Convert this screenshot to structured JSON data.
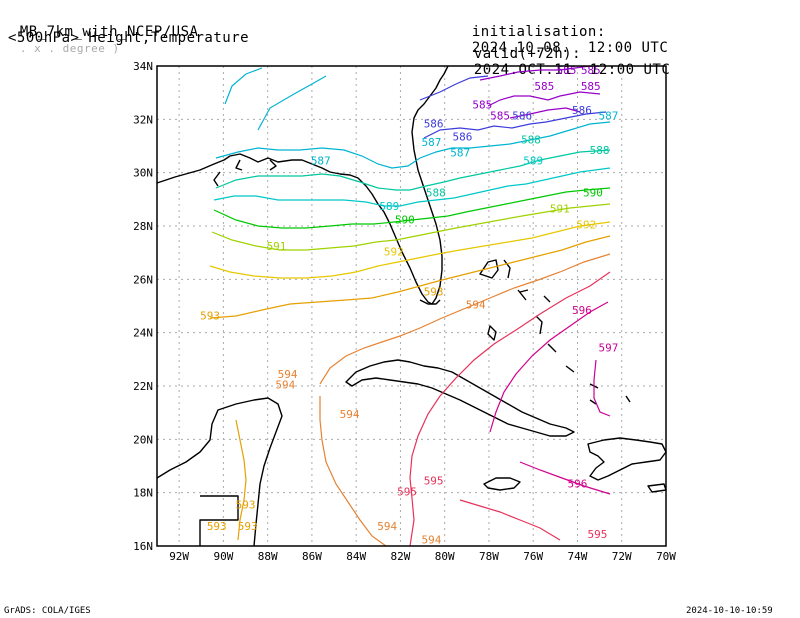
{
  "header": {
    "model": "MB_7km_with_NCEP/USA",
    "unit_note": ". x . degree )",
    "field": "<500hPa> Height,Temperature",
    "init_label": "initialisation:",
    "init_value": "2024.10.08.  12:00 UTC",
    "valid_label": "valid(+72h):",
    "valid_value": "2024.OCT.11  12:00 UTC"
  },
  "footer": {
    "credit": "GrADS: COLA/IGES",
    "generated": "2024-10-10-10:59"
  },
  "axes": {
    "lon_ticks": [
      "92W",
      "90W",
      "88W",
      "86W",
      "84W",
      "82W",
      "80W",
      "78W",
      "76W",
      "74W",
      "72W",
      "70W"
    ],
    "lat_ticks": [
      "34N",
      "32N",
      "30N",
      "28N",
      "26N",
      "24N",
      "22N",
      "20N",
      "18N",
      "16N"
    ]
  },
  "map": {
    "lon_range": [
      -93,
      -70
    ],
    "lat_range": [
      16,
      34
    ],
    "grid": "dotted",
    "colors": {
      "587": "#00b4d2",
      "588": "#00c8a0",
      "589": "#00c8c8",
      "590": "#00c800",
      "591": "#a0d200",
      "592": "#e6c800",
      "593": "#e6a000",
      "594": "#e68232",
      "595": "#e6325a",
      "596": "#d2008c",
      "597": "#c80096",
      "585": "#9600c8",
      "586": "#3c3cdc"
    },
    "contour_labels": [
      {
        "text": "585",
        "lon": -74.5,
        "lat": 33.7
      },
      {
        "text": "585",
        "lon": -73.4,
        "lat": 33.7
      },
      {
        "text": "585",
        "lon": -75.5,
        "lat": 33.1
      },
      {
        "text": "585",
        "lon": -73.4,
        "lat": 33.1
      },
      {
        "text": "585",
        "lon": -78.3,
        "lat": 32.4
      },
      {
        "text": "585",
        "lon": -77.5,
        "lat": 32.0
      },
      {
        "text": "586",
        "lon": -76.5,
        "lat": 32.0
      },
      {
        "text": "586",
        "lon": -80.5,
        "lat": 31.7
      },
      {
        "text": "586",
        "lon": -79.2,
        "lat": 31.2
      },
      {
        "text": "586",
        "lon": -73.8,
        "lat": 32.2
      },
      {
        "text": "587",
        "lon": -72.6,
        "lat": 32.0
      },
      {
        "text": "587",
        "lon": -80.6,
        "lat": 31.0
      },
      {
        "text": "587",
        "lon": -79.3,
        "lat": 30.6
      },
      {
        "text": "587",
        "lon": -85.6,
        "lat": 30.3
      },
      {
        "text": "588",
        "lon": -76.1,
        "lat": 31.1
      },
      {
        "text": "588",
        "lon": -73.0,
        "lat": 30.7
      },
      {
        "text": "588",
        "lon": -80.4,
        "lat": 29.1
      },
      {
        "text": "589",
        "lon": -76.0,
        "lat": 30.3
      },
      {
        "text": "589",
        "lon": -82.5,
        "lat": 28.6
      },
      {
        "text": "590",
        "lon": -73.3,
        "lat": 29.1
      },
      {
        "text": "590",
        "lon": -81.8,
        "lat": 28.1
      },
      {
        "text": "591",
        "lon": -74.8,
        "lat": 28.5
      },
      {
        "text": "591",
        "lon": -87.6,
        "lat": 27.1
      },
      {
        "text": "592",
        "lon": -73.6,
        "lat": 27.9
      },
      {
        "text": "592",
        "lon": -82.3,
        "lat": 26.9
      },
      {
        "text": "593",
        "lon": -80.5,
        "lat": 25.4
      },
      {
        "text": "593",
        "lon": -90.6,
        "lat": 24.5
      },
      {
        "text": "594",
        "lon": -78.6,
        "lat": 24.9
      },
      {
        "text": "594",
        "lon": -87.1,
        "lat": 22.3
      },
      {
        "text": "594",
        "lon": -87.2,
        "lat": 21.9
      },
      {
        "text": "594",
        "lon": -84.3,
        "lat": 20.8
      },
      {
        "text": "593",
        "lon": -89.0,
        "lat": 17.4
      },
      {
        "text": "593",
        "lon": -88.9,
        "lat": 16.6
      },
      {
        "text": "593",
        "lon": -90.3,
        "lat": 16.6
      },
      {
        "text": "594",
        "lon": -82.6,
        "lat": 16.6
      },
      {
        "text": "594",
        "lon": -80.6,
        "lat": 16.1
      },
      {
        "text": "595",
        "lon": -80.5,
        "lat": 18.3
      },
      {
        "text": "595",
        "lon": -81.7,
        "lat": 17.9
      },
      {
        "text": "595",
        "lon": -73.1,
        "lat": 16.3
      },
      {
        "text": "596",
        "lon": -73.8,
        "lat": 24.7
      },
      {
        "text": "596",
        "lon": -74.0,
        "lat": 18.2
      },
      {
        "text": "597",
        "lon": -72.6,
        "lat": 23.3
      }
    ]
  }
}
